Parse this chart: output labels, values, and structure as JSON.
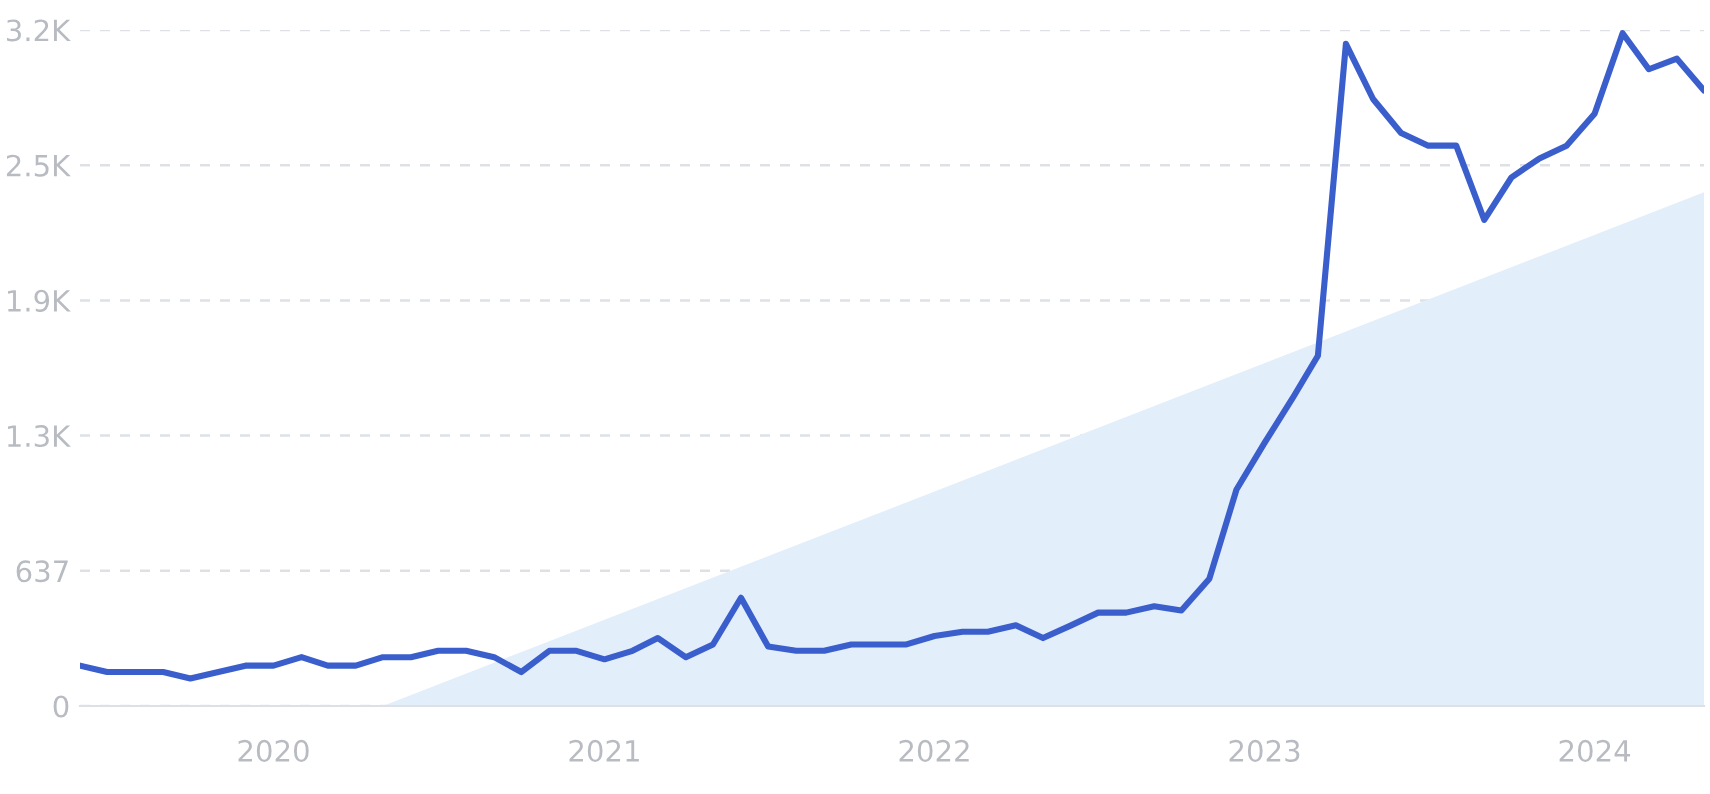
{
  "chart_data": {
    "type": "line",
    "x": [
      "2019-06",
      "2019-07",
      "2019-08",
      "2019-09",
      "2019-10",
      "2019-11",
      "2019-12",
      "2020-01",
      "2020-02",
      "2020-03",
      "2020-04",
      "2020-05",
      "2020-06",
      "2020-07",
      "2020-08",
      "2020-09",
      "2020-10",
      "2020-11",
      "2020-12",
      "2021-01",
      "2021-02",
      "2021-03",
      "2021-04",
      "2021-05",
      "2021-06",
      "2021-07",
      "2021-08",
      "2021-09",
      "2021-10",
      "2021-11",
      "2021-12",
      "2022-01",
      "2022-02",
      "2022-03",
      "2022-04",
      "2022-05",
      "2022-06",
      "2022-07",
      "2022-08",
      "2022-09",
      "2022-10",
      "2022-11",
      "2022-12",
      "2023-01",
      "2023-02",
      "2023-03",
      "2023-04",
      "2023-05",
      "2023-06",
      "2023-07",
      "2023-08",
      "2023-09",
      "2023-10",
      "2023-11",
      "2023-12",
      "2024-01",
      "2024-02",
      "2024-03",
      "2024-04",
      "2024-05"
    ],
    "series": [
      {
        "type": "area",
        "color": "#e3eefb",
        "x": [
          "2020-05",
          "2024-05"
        ],
        "values": [
          0,
          2420
        ]
      },
      {
        "type": "line",
        "color": "#3a5fcd",
        "values": [
          190,
          160,
          160,
          160,
          130,
          160,
          190,
          190,
          230,
          190,
          190,
          230,
          230,
          260,
          260,
          230,
          160,
          260,
          260,
          220,
          260,
          320,
          230,
          290,
          510,
          280,
          260,
          260,
          290,
          290,
          290,
          330,
          350,
          350,
          380,
          320,
          380,
          440,
          440,
          470,
          450,
          600,
          1020,
          1240,
          1450,
          1650,
          3120,
          2860,
          2700,
          2640,
          2640,
          2290,
          2490,
          2580,
          2640,
          2790,
          3170,
          3000,
          3050,
          2900
        ]
      }
    ],
    "xlim": [
      "2019-06",
      "2024-05"
    ],
    "xticks": [
      "2020",
      "2021",
      "2022",
      "2023",
      "2024"
    ],
    "ylim": [
      0,
      3185
    ],
    "yticks": [
      0,
      637,
      {
        "value": 1274,
        "label": "1.3K"
      },
      {
        "value": 1911,
        "label": "1.9K"
      },
      {
        "value": 2548,
        "label": "2.5K"
      },
      {
        "value": 3185,
        "label": "3.2K"
      }
    ],
    "grid": "y",
    "line_style": "solid",
    "marker": "none"
  }
}
